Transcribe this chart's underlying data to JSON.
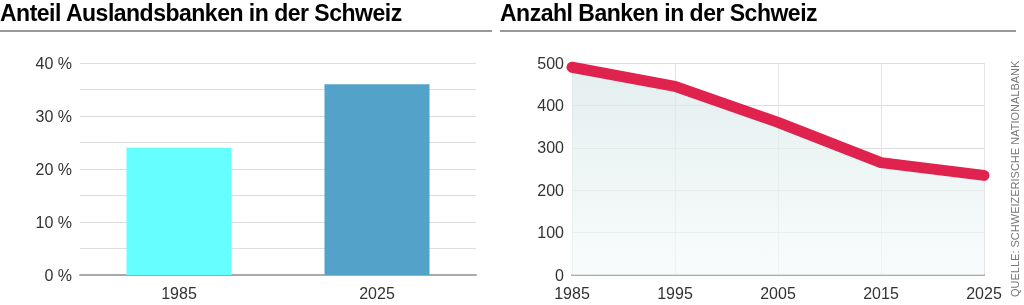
{
  "chart_data": [
    {
      "type": "bar",
      "title": "Anteil Auslandsbanken in der Schweiz",
      "categories": [
        "1985",
        "2025"
      ],
      "values": [
        24,
        36
      ],
      "colors": [
        "#66ffff",
        "#52a2c9"
      ],
      "ylim": [
        0,
        40
      ],
      "yticks": [
        {
          "value": 0,
          "label": "0 %"
        },
        {
          "value": 5,
          "label": null
        },
        {
          "value": 10,
          "label": "10 %"
        },
        {
          "value": 15,
          "label": null
        },
        {
          "value": 20,
          "label": "20 %"
        },
        {
          "value": 25,
          "label": null
        },
        {
          "value": 30,
          "label": "30 %"
        },
        {
          "value": 35,
          "label": null
        },
        {
          "value": 40,
          "label": "40 %"
        }
      ],
      "grid": "y"
    },
    {
      "type": "area",
      "title": "Anzahl Banken in der Schweiz",
      "categories": [
        "1985",
        "1995",
        "2005",
        "2015",
        "2025"
      ],
      "values": [
        490,
        445,
        360,
        265,
        235
      ],
      "color": "#e0224f",
      "ylim": [
        0,
        500
      ],
      "yticks": [
        0,
        100,
        200,
        300,
        400,
        500
      ],
      "grid": true,
      "annotations": [
        "QUELLE: SCHWEIZERISCHE NATIONALBANK"
      ]
    }
  ]
}
